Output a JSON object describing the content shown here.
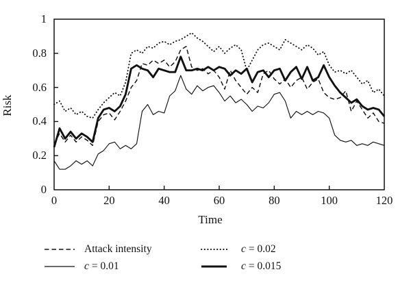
{
  "figure": {
    "background": "#ffffff",
    "ink": "#111111"
  },
  "chart_data": {
    "type": "line",
    "title": "",
    "xlabel": "Time",
    "ylabel": "Risk",
    "xlim": [
      0,
      120
    ],
    "ylim": [
      0,
      1
    ],
    "xticks": [
      0,
      20,
      40,
      60,
      80,
      100,
      120
    ],
    "xtick_labels": [
      "0",
      "20",
      "40",
      "60",
      "80",
      "100",
      "120"
    ],
    "yticks": [
      0,
      0.2,
      0.4,
      0.6,
      0.8,
      1
    ],
    "ytick_labels": [
      "0",
      "0.2",
      "0.4",
      "0.6",
      "0.8",
      "1"
    ],
    "grid": false,
    "legend_position": "below-chart, two columns",
    "x": [
      0,
      2,
      4,
      6,
      8,
      10,
      12,
      14,
      16,
      18,
      20,
      22,
      24,
      26,
      28,
      30,
      32,
      34,
      36,
      38,
      40,
      42,
      44,
      46,
      48,
      50,
      52,
      54,
      56,
      58,
      60,
      62,
      64,
      66,
      68,
      70,
      72,
      74,
      76,
      78,
      80,
      82,
      84,
      86,
      88,
      90,
      92,
      94,
      96,
      98,
      100,
      102,
      104,
      106,
      108,
      110,
      112,
      114,
      116,
      118,
      120
    ],
    "series": [
      {
        "id": "c-0-02",
        "name": "c = 0.02",
        "style": "dotted",
        "values": [
          0.5,
          0.52,
          0.46,
          0.48,
          0.44,
          0.46,
          0.43,
          0.42,
          0.47,
          0.51,
          0.54,
          0.57,
          0.55,
          0.63,
          0.8,
          0.82,
          0.8,
          0.84,
          0.83,
          0.86,
          0.87,
          0.85,
          0.87,
          0.88,
          0.9,
          0.92,
          0.89,
          0.87,
          0.84,
          0.81,
          0.84,
          0.8,
          0.83,
          0.85,
          0.82,
          0.7,
          0.76,
          0.82,
          0.85,
          0.86,
          0.84,
          0.82,
          0.88,
          0.86,
          0.84,
          0.82,
          0.85,
          0.83,
          0.79,
          0.81,
          0.73,
          0.69,
          0.7,
          0.68,
          0.7,
          0.66,
          0.62,
          0.64,
          0.57,
          0.59,
          0.55
        ]
      },
      {
        "id": "attack-intensity",
        "name": "Attack intensity",
        "style": "dashed",
        "values": [
          0.27,
          0.33,
          0.28,
          0.32,
          0.28,
          0.31,
          0.29,
          0.26,
          0.4,
          0.44,
          0.45,
          0.41,
          0.46,
          0.52,
          0.6,
          0.64,
          0.74,
          0.73,
          0.76,
          0.74,
          0.76,
          0.72,
          0.75,
          0.82,
          0.84,
          0.72,
          0.7,
          0.71,
          0.68,
          0.7,
          0.66,
          0.59,
          0.7,
          0.64,
          0.6,
          0.56,
          0.6,
          0.57,
          0.68,
          0.7,
          0.65,
          0.62,
          0.65,
          0.6,
          0.64,
          0.66,
          0.59,
          0.63,
          0.65,
          0.57,
          0.54,
          0.53,
          0.54,
          0.58,
          0.46,
          0.52,
          0.47,
          0.42,
          0.45,
          0.4,
          0.39
        ]
      },
      {
        "id": "c-0-01",
        "name": "c = 0.01",
        "style": "thin-solid",
        "values": [
          0.17,
          0.12,
          0.12,
          0.14,
          0.17,
          0.15,
          0.17,
          0.14,
          0.21,
          0.23,
          0.27,
          0.28,
          0.24,
          0.26,
          0.24,
          0.27,
          0.46,
          0.5,
          0.44,
          0.46,
          0.45,
          0.55,
          0.58,
          0.67,
          0.59,
          0.56,
          0.61,
          0.58,
          0.6,
          0.61,
          0.57,
          0.52,
          0.55,
          0.51,
          0.53,
          0.5,
          0.46,
          0.49,
          0.48,
          0.51,
          0.56,
          0.57,
          0.52,
          0.42,
          0.46,
          0.44,
          0.46,
          0.44,
          0.46,
          0.45,
          0.42,
          0.32,
          0.29,
          0.28,
          0.29,
          0.26,
          0.27,
          0.26,
          0.28,
          0.27,
          0.26
        ]
      },
      {
        "id": "c-0-015",
        "name": "c = 0.015",
        "style": "thick-solid",
        "values": [
          0.25,
          0.36,
          0.3,
          0.34,
          0.3,
          0.33,
          0.31,
          0.28,
          0.42,
          0.47,
          0.48,
          0.46,
          0.49,
          0.56,
          0.71,
          0.73,
          0.71,
          0.7,
          0.66,
          0.71,
          0.7,
          0.69,
          0.69,
          0.78,
          0.7,
          0.7,
          0.71,
          0.7,
          0.72,
          0.7,
          0.72,
          0.71,
          0.67,
          0.7,
          0.68,
          0.71,
          0.63,
          0.69,
          0.7,
          0.66,
          0.7,
          0.71,
          0.64,
          0.69,
          0.72,
          0.65,
          0.72,
          0.64,
          0.66,
          0.73,
          0.66,
          0.61,
          0.57,
          0.54,
          0.51,
          0.53,
          0.49,
          0.47,
          0.48,
          0.47,
          0.43
        ]
      }
    ]
  },
  "legend": {
    "items": [
      {
        "var": "",
        "label": "Attack intensity",
        "style": "dashed"
      },
      {
        "var": "c",
        "label": "= 0.01",
        "style": "thin-solid"
      },
      {
        "var": "c",
        "label": "= 0.02",
        "style": "dotted"
      },
      {
        "var": "c",
        "label": "= 0.015",
        "style": "thick-solid"
      }
    ]
  }
}
